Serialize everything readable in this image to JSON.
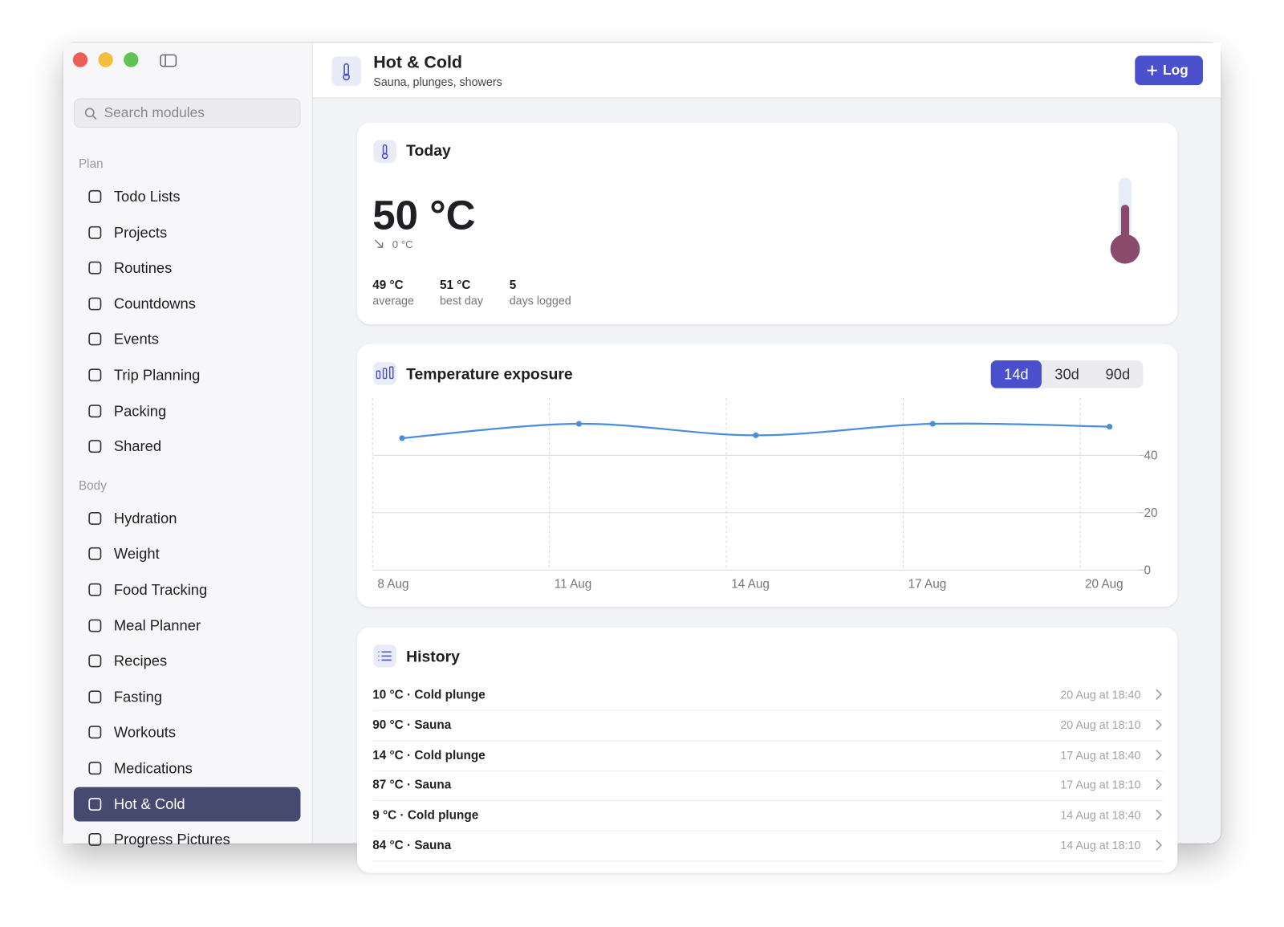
{
  "window": {
    "controls": [
      "close",
      "minimize",
      "zoom"
    ]
  },
  "sidebar": {
    "search_placeholder": "Search modules",
    "sections": [
      {
        "title": "Plan",
        "items": [
          {
            "label": "Todo Lists"
          },
          {
            "label": "Projects"
          },
          {
            "label": "Routines"
          },
          {
            "label": "Countdowns"
          },
          {
            "label": "Events"
          },
          {
            "label": "Trip Planning"
          },
          {
            "label": "Packing"
          },
          {
            "label": "Shared"
          }
        ]
      },
      {
        "title": "Body",
        "items": [
          {
            "label": "Hydration"
          },
          {
            "label": "Weight"
          },
          {
            "label": "Food Tracking"
          },
          {
            "label": "Meal Planner"
          },
          {
            "label": "Recipes"
          },
          {
            "label": "Fasting"
          },
          {
            "label": "Workouts"
          },
          {
            "label": "Medications"
          },
          {
            "label": "Hot & Cold",
            "selected": true
          },
          {
            "label": "Progress Pictures"
          }
        ]
      }
    ]
  },
  "header": {
    "title": "Hot & Cold",
    "subtitle": "Sauna, plunges, showers",
    "button": "Log"
  },
  "today": {
    "title": "Today",
    "value": "50 °C",
    "change": "0 °C",
    "stats": [
      {
        "value": "49 °C",
        "label": "average"
      },
      {
        "value": "51 °C",
        "label": "best day"
      },
      {
        "value": "5",
        "label": "days logged"
      }
    ]
  },
  "chart": {
    "type": "line",
    "title": "Temperature exposure",
    "segments": [
      {
        "label": "14d",
        "selected": true
      },
      {
        "label": "30d"
      },
      {
        "label": "90d"
      }
    ],
    "categories": [
      "8 Aug",
      "11 Aug",
      "14 Aug",
      "17 Aug",
      "20 Aug"
    ],
    "values": [
      46,
      51,
      47,
      51,
      50
    ],
    "color": "#4a8ed8",
    "ylim": [
      0,
      60
    ],
    "yticks": [
      0,
      20,
      40
    ],
    "grid": true
  },
  "history": {
    "title": "History",
    "rows": [
      {
        "text": "10 °C · Cold plunge",
        "time": "20 Aug at 18:40"
      },
      {
        "text": "90 °C · Sauna",
        "time": "20 Aug at 18:10"
      },
      {
        "text": "14 °C · Cold plunge",
        "time": "17 Aug at 18:40"
      },
      {
        "text": "87 °C · Sauna",
        "time": "17 Aug at 18:10"
      },
      {
        "text": "9 °C · Cold plunge",
        "time": "14 Aug at 18:40"
      },
      {
        "text": "84 °C · Sauna",
        "time": "14 Aug at 18:10"
      }
    ]
  }
}
